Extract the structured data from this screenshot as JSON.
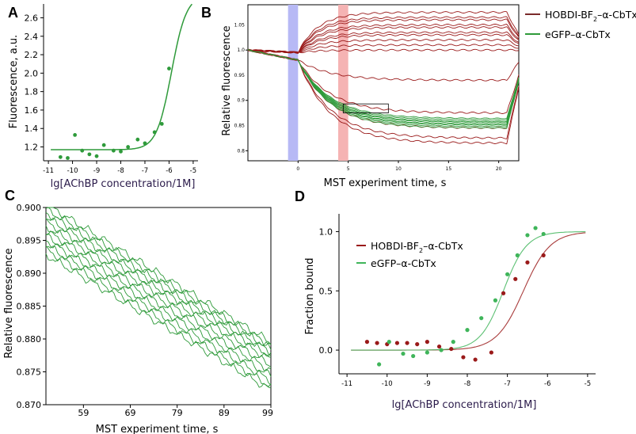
{
  "colors": {
    "green": "#2e9a3a",
    "lightgreen": "#3fb55a",
    "darkred": "#9a1a1a",
    "red": "#b33a3a",
    "blue_band": "#b7b9f5",
    "pink_band": "#f5b3b3",
    "axis": "#000000",
    "label": "#2a1a4a"
  },
  "chart_data": [
    {
      "id": "A",
      "type": "scatter",
      "panel_label": "A",
      "xlabel": "lg[AChBP concentration/1M]",
      "ylabel": "Fluorescence, a.u.",
      "xlim": [
        -11.2,
        -4.8
      ],
      "ylim": [
        1.05,
        2.75
      ],
      "x_ticks": [
        -11,
        -10,
        -9,
        -8,
        -7,
        -6,
        -5
      ],
      "x_tick_labels": [
        "-11",
        "-10",
        "-9",
        "-8",
        "-7",
        "-6",
        "-5"
      ],
      "y_ticks": [
        1.2,
        1.4,
        1.6,
        1.8,
        2.0,
        2.2,
        2.4,
        2.6
      ],
      "y_tick_labels": [
        "1.2",
        "1.4",
        "1.6",
        "1.8",
        "2.0",
        "2.2",
        "2.4",
        "2.6"
      ],
      "points": {
        "x": [
          -10.5,
          -10.2,
          -9.9,
          -9.6,
          -9.3,
          -9.0,
          -8.7,
          -8.3,
          -8.0,
          -7.7,
          -7.3,
          -7.0,
          -6.6,
          -6.3,
          -6.0
        ],
        "y": [
          1.09,
          1.08,
          1.33,
          1.16,
          1.12,
          1.1,
          1.22,
          1.16,
          1.15,
          1.2,
          1.28,
          1.24,
          1.36,
          1.45,
          2.05
        ]
      },
      "fit": {
        "bottom": 1.17,
        "top": 2.85,
        "ec50_log": -5.9,
        "hill": 1.4
      }
    },
    {
      "id": "B",
      "type": "line",
      "panel_label": "B",
      "xlabel": "MST experiment time, s",
      "ylabel": "Relative fluorescence",
      "xlim": [
        -5,
        22
      ],
      "ylim": [
        0.78,
        1.09
      ],
      "x_ticks": [
        0,
        5,
        10,
        15,
        20
      ],
      "x_tick_labels": [
        "0",
        "5",
        "10",
        "15",
        "20"
      ],
      "y_ticks": [
        0.8,
        0.9,
        1.0
      ],
      "y_tick_labels": [
        "0.8",
        "0.9",
        "1.0"
      ],
      "y_ticks_small": [
        1.05,
        0.95,
        0.85
      ],
      "y_ticks_small_labels": [
        "1.05",
        "0.95",
        "0.85"
      ],
      "blue_band": [
        -1.0,
        0.0
      ],
      "pink_band": [
        4.0,
        5.0
      ],
      "zoom_box": {
        "x": [
          4.5,
          9.0
        ],
        "y": [
          0.875,
          0.893
        ]
      },
      "legend": [
        "HOBDI-BF",
        "2",
        "–α-CbTx",
        "eGFP–α-CbTx"
      ],
      "series_red_final": [
        1.075,
        1.065,
        1.06,
        1.05,
        1.045,
        1.035,
        1.03,
        1.02,
        1.01,
        1.0,
        0.94,
        0.875,
        0.845,
        0.825,
        0.815
      ],
      "series_green_final": [
        0.864,
        0.861,
        0.858,
        0.856,
        0.853,
        0.851,
        0.848,
        0.845
      ]
    },
    {
      "id": "C",
      "type": "line",
      "panel_label": "C",
      "xlabel": "MST experiment time, s",
      "ylabel": "Relative fluorescence",
      "xlim": [
        51,
        99
      ],
      "ylim": [
        0.87,
        0.9
      ],
      "x_ticks": [
        59,
        69,
        79,
        89,
        99
      ],
      "x_tick_labels": [
        "59",
        "69",
        "79",
        "89",
        "99"
      ],
      "y_ticks": [
        0.87,
        0.875,
        0.88,
        0.885,
        0.89,
        0.895,
        0.9
      ],
      "y_tick_labels": [
        "0.870",
        "0.875",
        "0.880",
        "0.885",
        "0.890",
        "0.895",
        "0.900"
      ],
      "series_start": [
        0.9005,
        0.8998,
        0.8992,
        0.8985,
        0.8978,
        0.8971,
        0.8964,
        0.8957,
        0.895,
        0.8943,
        0.8936,
        0.8928
      ],
      "series_end": [
        0.8795,
        0.879,
        0.8785,
        0.878,
        0.8775,
        0.8768,
        0.876,
        0.8752,
        0.8744,
        0.8736,
        0.8728,
        0.8722
      ]
    },
    {
      "id": "D",
      "type": "scatter",
      "panel_label": "D",
      "xlabel": "lg[AChBP concentration/1M]",
      "ylabel": "Fraction bound",
      "xlim": [
        -11.2,
        -4.8
      ],
      "ylim": [
        -0.2,
        1.15
      ],
      "x_ticks": [
        -11,
        -10,
        -9,
        -8,
        -7,
        -6,
        -5
      ],
      "x_tick_labels": [
        "-11",
        "-10",
        "-9",
        "-8",
        "-7",
        "-6",
        "-5"
      ],
      "y_ticks": [
        0.0,
        0.5,
        1.0
      ],
      "y_tick_labels": [
        "0.0",
        "0.5",
        "1.0"
      ],
      "legend": [
        "HOBDI-BF",
        "2",
        "–α-CbTx",
        "eGFP–α-CbTx"
      ],
      "series": [
        {
          "name": "HOBDI-BF2–α-CbTx",
          "x": [
            -10.5,
            -10.25,
            -10.0,
            -9.75,
            -9.5,
            -9.25,
            -9.0,
            -8.7,
            -8.4,
            -8.1,
            -7.8,
            -7.4,
            -7.1,
            -6.8,
            -6.5,
            -6.1
          ],
          "y": [
            0.07,
            0.06,
            0.05,
            0.06,
            0.06,
            0.05,
            0.07,
            0.03,
            0.01,
            -0.06,
            -0.08,
            -0.02,
            0.48,
            0.6,
            0.74,
            0.8
          ],
          "fit": {
            "bottom": 0.0,
            "top": 1.0,
            "ec50_log": -6.6,
            "hill": 1.3
          }
        },
        {
          "name": "eGFP–α-CbTx",
          "x": [
            -10.2,
            -9.95,
            -9.6,
            -9.35,
            -9.0,
            -8.65,
            -8.35,
            -8.0,
            -7.65,
            -7.3,
            -7.0,
            -6.75,
            -6.5,
            -6.3,
            -6.1
          ],
          "y": [
            -0.12,
            0.07,
            -0.03,
            -0.05,
            -0.02,
            0.0,
            0.07,
            0.17,
            0.27,
            0.42,
            0.64,
            0.8,
            0.97,
            1.03,
            0.98
          ],
          "fit": {
            "bottom": 0.0,
            "top": 1.0,
            "ec50_log": -7.1,
            "hill": 1.5
          }
        }
      ]
    }
  ]
}
